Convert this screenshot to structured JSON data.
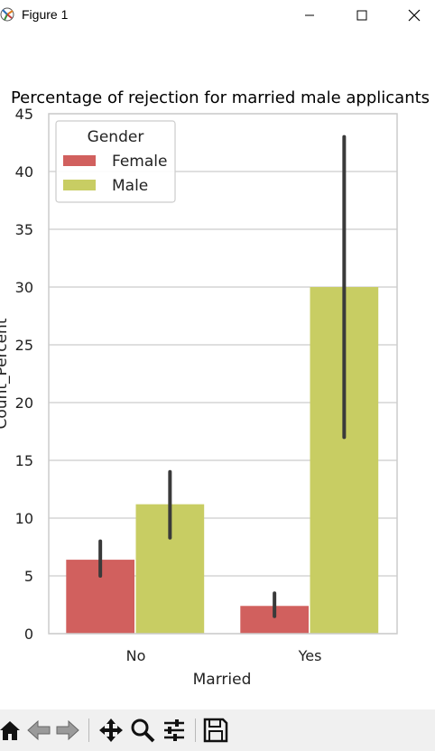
{
  "window": {
    "title": "Figure 1",
    "buttons": [
      "minimize",
      "maximize",
      "close"
    ]
  },
  "toolbar": {
    "icons": [
      "home-icon",
      "back-icon",
      "forward-icon",
      "pan-icon",
      "zoom-icon",
      "configure-subplots-icon",
      "save-icon"
    ]
  },
  "colors": {
    "female": "#d1605e",
    "male": "#c8cd63",
    "errorbar": "#3a3a3a",
    "grid": "#cccccc",
    "spine": "#cccccc"
  },
  "chart_data": {
    "type": "bar",
    "title": "Percentage of rejection for married male applicants",
    "xlabel": "Married",
    "ylabel": "Count_Percent",
    "categories": [
      "No",
      "Yes"
    ],
    "series": [
      {
        "name": "Female",
        "values": [
          6.4,
          2.4
        ],
        "ci_low": [
          5.0,
          1.5
        ],
        "ci_high": [
          8.0,
          3.5
        ]
      },
      {
        "name": "Male",
        "values": [
          11.2,
          30.0
        ],
        "ci_low": [
          8.3,
          17.0
        ],
        "ci_high": [
          14.0,
          43.0
        ]
      }
    ],
    "ylim": [
      0,
      45
    ],
    "yticks": [
      "0",
      "5",
      "10",
      "15",
      "20",
      "25",
      "30",
      "35",
      "40",
      "45"
    ],
    "legend": {
      "title": "Gender",
      "placement": "upper-left"
    },
    "grid": "horizontal"
  }
}
